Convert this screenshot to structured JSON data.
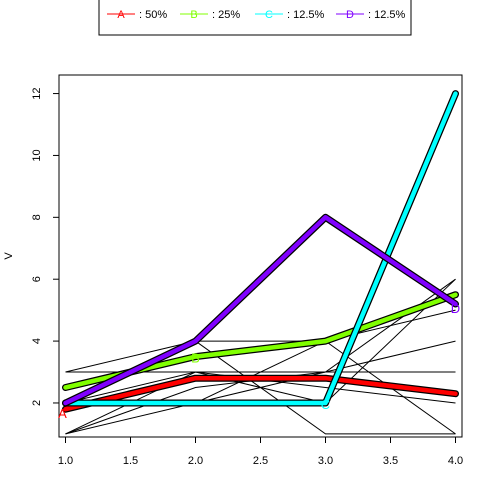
{
  "chart_data": {
    "type": "line",
    "title": "",
    "xlabel": "",
    "ylabel": "V",
    "xlim": [
      0.95,
      4.05
    ],
    "ylim": [
      0.9,
      12.6
    ],
    "x_ticks": [
      "1.0",
      "1.5",
      "2.0",
      "2.5",
      "3.0",
      "3.5",
      "4.0"
    ],
    "y_ticks": [
      "2",
      "4",
      "6",
      "8",
      "10",
      "12"
    ],
    "legend_position": "top-center",
    "legend": [
      {
        "key": "A",
        "label": "A",
        "share": ":  50%",
        "color": "#ff0000"
      },
      {
        "key": "B",
        "label": "B",
        "share": ":  25%",
        "color": "#80ff00"
      },
      {
        "key": "C",
        "label": "C",
        "share": ": 12.5%",
        "color": "#00ffff"
      },
      {
        "key": "D",
        "label": "D",
        "share": ": 12.5%",
        "color": "#8000ff"
      }
    ],
    "series": [
      {
        "key": "A",
        "label": "A",
        "color": "#ff0000",
        "x": [
          1,
          2,
          3,
          4
        ],
        "y": [
          1.8,
          2.8,
          2.8,
          2.3
        ]
      },
      {
        "key": "B",
        "label": "B",
        "color": "#80ff00",
        "x": [
          1,
          2,
          3,
          4
        ],
        "y": [
          2.5,
          3.5,
          4.0,
          5.5
        ]
      },
      {
        "key": "C",
        "label": "C",
        "color": "#00ffff",
        "x": [
          1,
          2,
          3,
          4
        ],
        "y": [
          2.0,
          2.0,
          2.0,
          12.0
        ]
      },
      {
        "key": "D",
        "label": "D",
        "color": "#8000ff",
        "x": [
          1,
          2,
          3,
          4
        ],
        "y": [
          2.0,
          4.0,
          8.0,
          5.2
        ]
      }
    ],
    "background_lines": [
      {
        "x": [
          1,
          2,
          3,
          4
        ],
        "y": [
          1,
          3,
          2,
          6
        ]
      },
      {
        "x": [
          1,
          2,
          3,
          4
        ],
        "y": [
          3,
          3,
          3,
          3
        ]
      },
      {
        "x": [
          1,
          2,
          3,
          4
        ],
        "y": [
          2,
          4,
          4,
          1
        ]
      },
      {
        "x": [
          1,
          2,
          3,
          4
        ],
        "y": [
          1,
          2,
          3,
          4
        ]
      },
      {
        "x": [
          1,
          2,
          3,
          4
        ],
        "y": [
          3,
          4,
          1,
          1
        ]
      },
      {
        "x": [
          1,
          2,
          3,
          4
        ],
        "y": [
          2,
          2,
          4,
          5
        ]
      },
      {
        "x": [
          1,
          2,
          3,
          4
        ],
        "y": [
          2,
          3,
          2.5,
          2
        ]
      },
      {
        "x": [
          1,
          2,
          3,
          4
        ],
        "y": [
          1,
          2.5,
          3,
          6
        ]
      }
    ]
  }
}
